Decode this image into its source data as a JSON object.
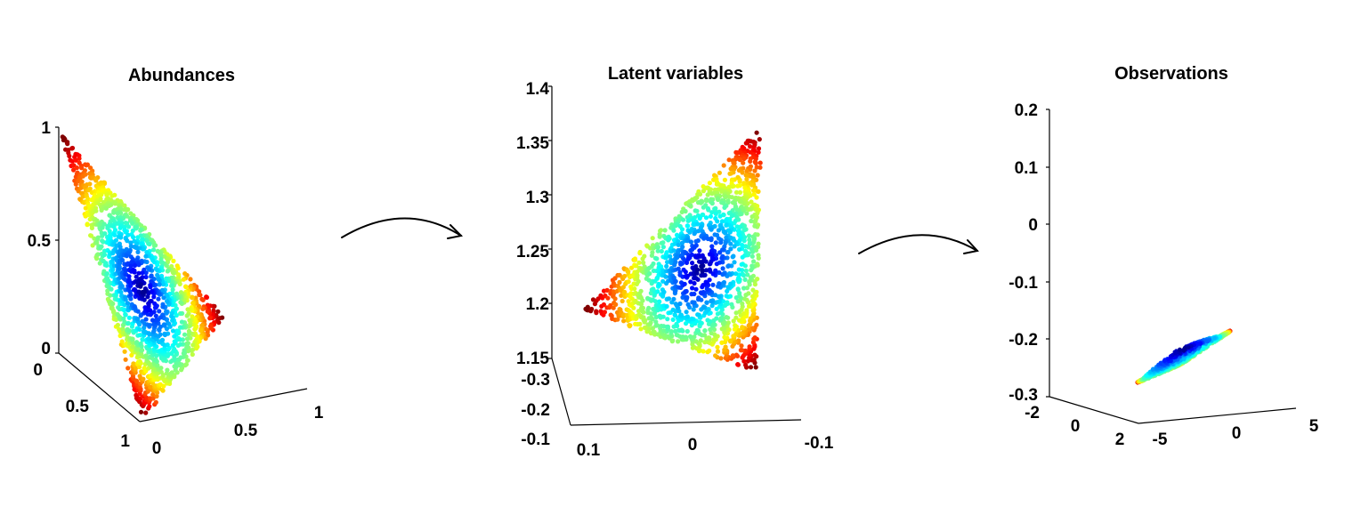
{
  "colors": {
    "jet_low": "#00008f",
    "jet_mid": "#00ffff",
    "jet_high": "#800000",
    "axis": "#000000",
    "background": "#ffffff"
  },
  "chart_data": [
    {
      "type": "scatter",
      "projection": "3d",
      "title": "Abundances",
      "xlabel": "",
      "ylabel": "",
      "zlabel": "",
      "colormap": "jet",
      "color_encoding": "distance from simplex centroid (blue = center, red = vertices)",
      "description_of_points": "approx. 1500 points uniformly filling the 2-simplex a1 + a2 + a3 = 1",
      "vertices": [
        [
          1,
          0,
          0
        ],
        [
          0,
          1,
          0
        ],
        [
          0,
          0,
          1
        ]
      ],
      "xlim": [
        0,
        1
      ],
      "ylim": [
        0,
        1
      ],
      "zlim": [
        0,
        1
      ],
      "ticks": {
        "z": [
          "0",
          "0.5",
          "1"
        ],
        "y": [
          "0",
          "0.5",
          "1"
        ],
        "x": [
          "0",
          "0.5",
          "1"
        ]
      }
    },
    {
      "type": "scatter",
      "projection": "3d",
      "title": "Latent variables",
      "xlabel": "",
      "ylabel": "",
      "zlabel": "",
      "colormap": "jet",
      "color_encoding": "same coloring as abundances",
      "description_of_points": "approx. 1500 points filling a triangle, nearly planar in depth",
      "xlim": [
        -0.1,
        0.1
      ],
      "ylim": [
        -0.3,
        -0.1
      ],
      "zlim": [
        1.15,
        1.4
      ],
      "ticks": {
        "z": [
          "1.4",
          "1.35",
          "1.3",
          "1.25",
          "1.2",
          "1.15"
        ],
        "y": [
          "-0.3",
          "-0.2",
          "-0.1"
        ],
        "x": [
          "0.1",
          "0",
          "-0.1"
        ]
      }
    },
    {
      "type": "scatter",
      "projection": "3d",
      "title": "Observations",
      "xlabel": "",
      "ylabel": "",
      "zlabel": "",
      "colormap": "jet",
      "color_encoding": "same coloring as abundances",
      "description_of_points": "approx. 1500 points forming a curved manifold with three legs hanging downward",
      "xlim": [
        -5,
        5
      ],
      "ylim": [
        -2,
        2
      ],
      "zlim": [
        -0.3,
        0.2
      ],
      "ticks": {
        "z": [
          "0.2",
          "0.1",
          "0",
          "-0.1",
          "-0.2",
          "-0.3"
        ],
        "y": [
          "-2",
          "0",
          "2"
        ],
        "x": [
          "-5",
          "0",
          "5"
        ]
      }
    }
  ]
}
